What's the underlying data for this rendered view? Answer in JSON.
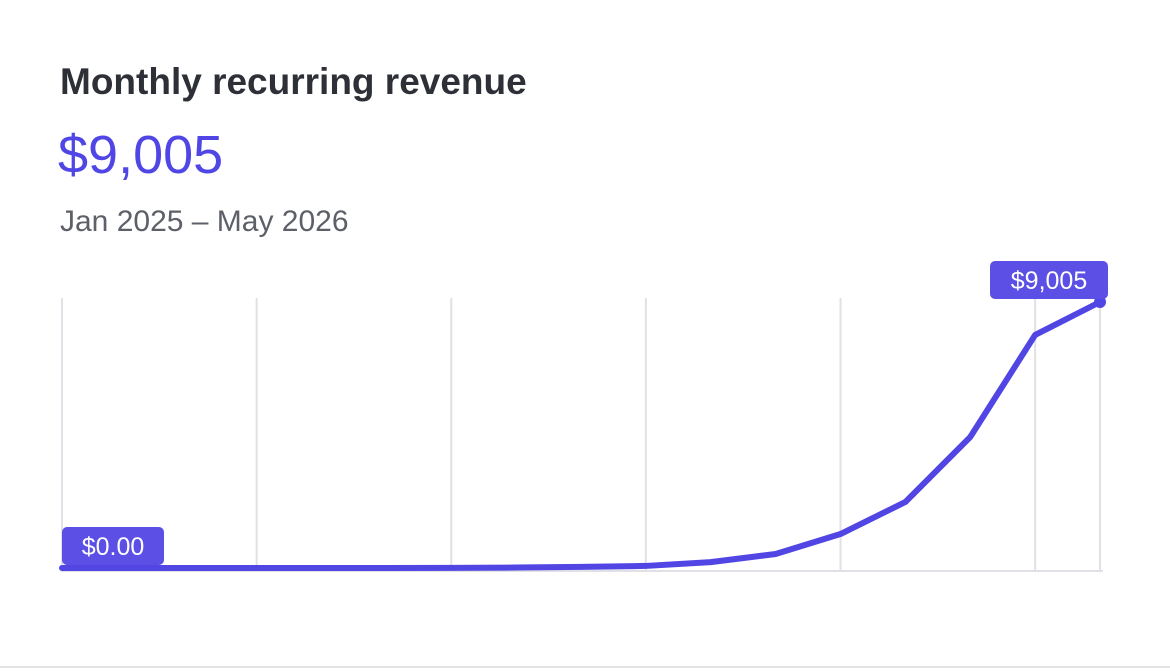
{
  "chart_data": {
    "type": "line",
    "title": "Monthly recurring revenue",
    "headline": "$9,005",
    "subtitle": "Jan 2025 – May 2026",
    "categories": [
      null,
      null,
      null,
      null,
      null,
      null,
      null,
      null,
      null,
      null,
      null,
      null,
      null,
      null,
      null,
      null,
      null
    ],
    "values": [
      0,
      0,
      0,
      0,
      0,
      0,
      5,
      15,
      40,
      70,
      200,
      475,
      1150,
      2235,
      4435,
      7890,
      9005
    ],
    "value_labels": [
      "$0.00",
      null,
      null,
      null,
      null,
      null,
      null,
      null,
      null,
      null,
      null,
      null,
      null,
      null,
      null,
      null,
      "$9,005"
    ],
    "color": "#5145e3",
    "ylim": [
      0,
      9005
    ],
    "grid": true
  }
}
